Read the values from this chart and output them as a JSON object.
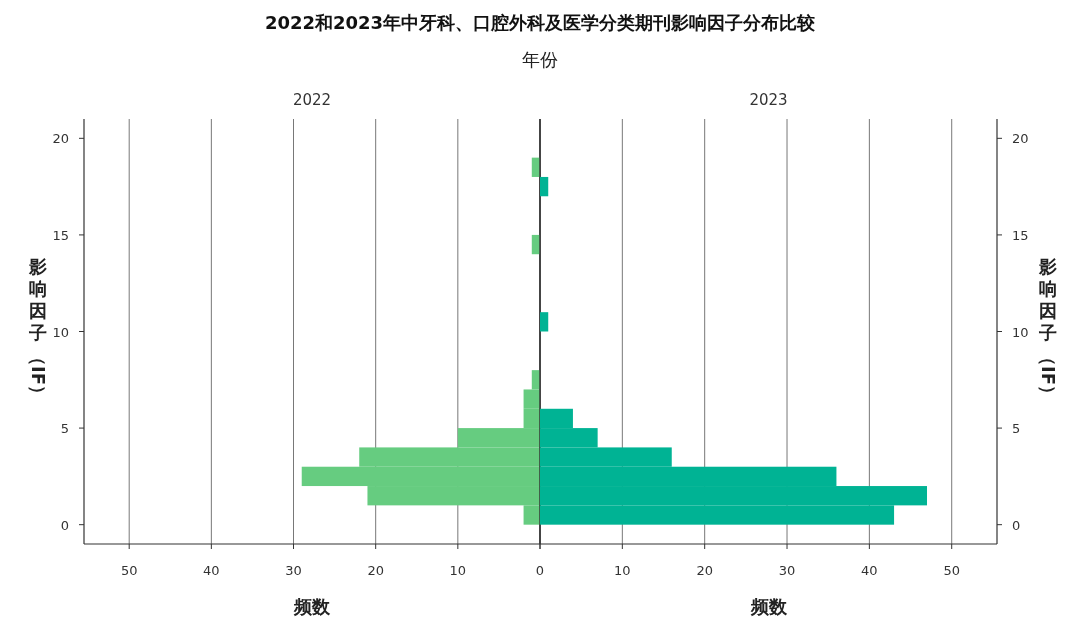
{
  "chart_data": [
    {
      "type": "histogram",
      "orientation": "horizontal",
      "title": "2022",
      "annotations": [
        "2022和2023年中牙科、口腔外科及医学分类期刊影响因子分布比较",
        "年份"
      ],
      "xlabel": "频数",
      "ylabel": "影响因子（IF）",
      "color": "#66cc80",
      "grid": "x",
      "bins": [
        0,
        1,
        2,
        3,
        4,
        5,
        6,
        7,
        8,
        9,
        10,
        11,
        12,
        13,
        14,
        15,
        16,
        17,
        18,
        19
      ],
      "values": [
        2,
        21,
        29,
        22,
        10,
        2,
        2,
        1,
        0,
        0,
        0,
        0,
        0,
        0,
        1,
        0,
        0,
        0,
        1
      ],
      "xlim": [
        55.5,
        0
      ],
      "xticks": [
        0,
        10,
        20,
        30,
        40,
        50
      ],
      "ylim": [
        -1,
        21
      ],
      "yticks": [
        0,
        5,
        10,
        15,
        20
      ]
    },
    {
      "type": "histogram",
      "orientation": "horizontal",
      "title": "2023",
      "xlabel": "频数",
      "ylabel": "影响因子（IF）",
      "color": "#00b394",
      "grid": "x",
      "bins": [
        0,
        1,
        2,
        3,
        4,
        5,
        6,
        7,
        8,
        9,
        10,
        11,
        12,
        13,
        14,
        15,
        16,
        17,
        18,
        19
      ],
      "values": [
        43,
        47,
        36,
        16,
        7,
        4,
        0,
        0,
        0,
        0,
        1,
        0,
        0,
        0,
        0,
        0,
        0,
        1,
        0
      ],
      "xlim": [
        0,
        55.5
      ],
      "xticks": [
        {
          "value": 0,
          "label": null
        },
        10,
        20,
        30,
        40,
        50
      ],
      "ylim": [
        -1,
        21
      ],
      "yticks": [
        0,
        5,
        10,
        15,
        20
      ]
    }
  ]
}
